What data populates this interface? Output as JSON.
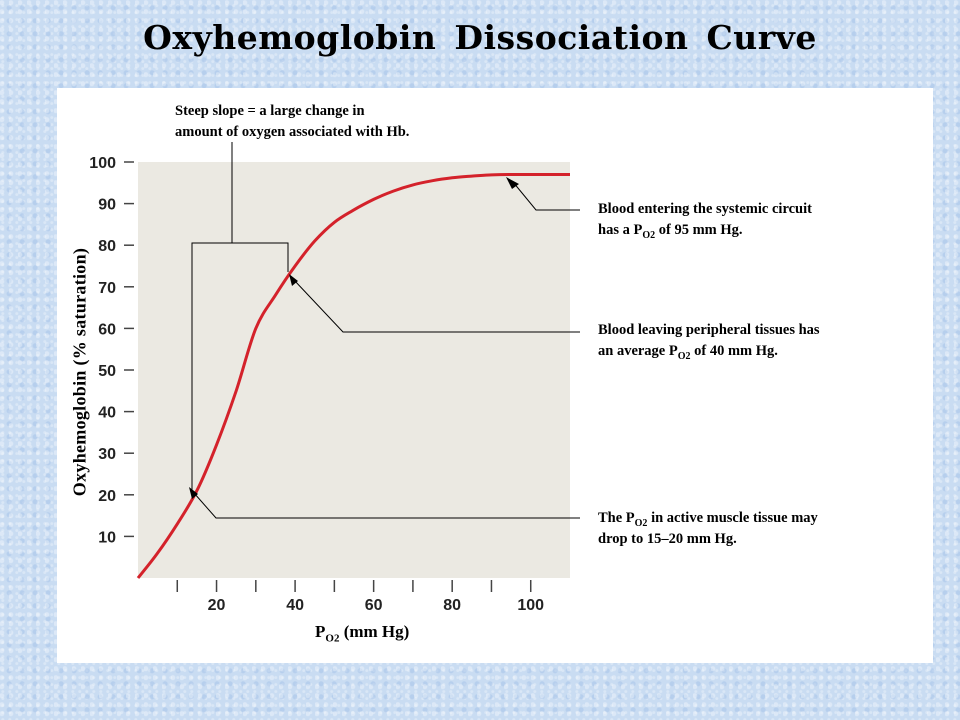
{
  "title": "Oxyhemoglobin Dissociation Curve",
  "chart_data": {
    "type": "line",
    "title": "Oxyhemoglobin Dissociation Curve",
    "xlabel_main": "P",
    "xlabel_sub": "O2",
    "xlabel_rest": "(mm Hg)",
    "ylabel": "Oxyhemoglobin (% saturation)",
    "xlim": [
      0,
      110
    ],
    "ylim": [
      0,
      100
    ],
    "x_ticks": [
      20,
      40,
      60,
      80,
      100
    ],
    "y_ticks": [
      10,
      20,
      30,
      40,
      50,
      60,
      70,
      80,
      90,
      100
    ],
    "series": [
      {
        "color": "#d4222b",
        "x": [
          0,
          5,
          10,
          15,
          20,
          25,
          30,
          35,
          40,
          45,
          50,
          55,
          60,
          65,
          70,
          75,
          80,
          85,
          90,
          95,
          100,
          105,
          110
        ],
        "values": [
          0,
          6,
          13,
          21,
          32,
          45,
          60,
          68,
          75,
          81,
          85.5,
          88.5,
          91,
          93,
          94.5,
          95.5,
          96.2,
          96.6,
          96.9,
          97,
          97,
          97,
          97
        ]
      }
    ],
    "annotations": [
      {
        "text_lines": [
          "Steep slope = a large change in",
          "amount of oxygen associated with Hb."
        ]
      },
      {
        "line1": "Blood entering the systemic circuit",
        "line2_pre": "has a P",
        "line2_sub": "O2",
        "line2_post": "of 95 mm Hg."
      },
      {
        "line1": "Blood leaving peripheral tissues has",
        "line2_pre": "an average P",
        "line2_sub": "O2",
        "line2_post": "of 40 mm Hg."
      },
      {
        "line1_pre": "The P",
        "line1_sub": "O2",
        "line1_post": "in active muscle tissue may",
        "line2": "drop to 15–20 mm Hg."
      }
    ]
  }
}
